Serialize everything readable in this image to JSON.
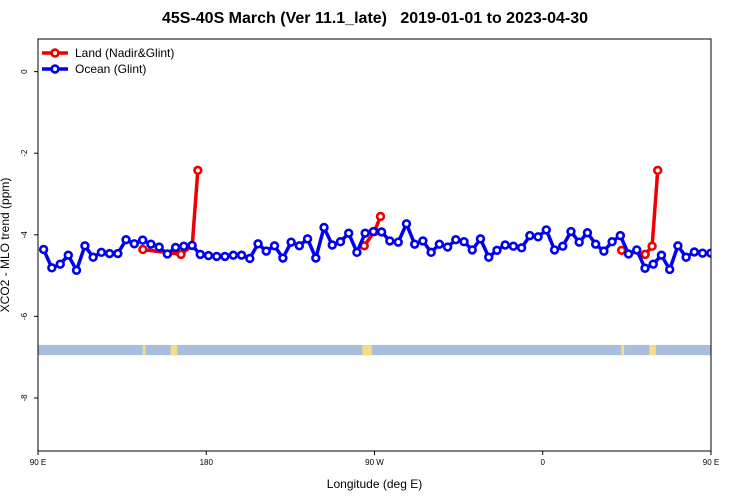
{
  "chart_data": {
    "type": "line",
    "title": "45S-40S March (Ver 11.1_late)   2019-01-01 to 2023-04-30",
    "xlabel": "Longitude (deg E)",
    "ylabel": "XCO2 - MLO trend (ppm)",
    "xlim": [
      90,
      450
    ],
    "ylim": [
      -9.3,
      0.8
    ],
    "x_ticks": [
      {
        "value": 90,
        "label": "90 E"
      },
      {
        "value": 180,
        "label": "180"
      },
      {
        "value": 270,
        "label": "90 W"
      },
      {
        "value": 360,
        "label": "0"
      },
      {
        "value": 450,
        "label": "90 E"
      },
      {
        "value": 540,
        "label": "180"
      }
    ],
    "y_ticks": [
      {
        "value": 0,
        "label": "0"
      },
      {
        "value": -2,
        "label": "-2"
      },
      {
        "value": -4,
        "label": "-4"
      },
      {
        "value": -6,
        "label": "-6"
      },
      {
        "value": -8,
        "label": "-8"
      }
    ],
    "grid": false,
    "legend_position": "top-left",
    "series": [
      {
        "name": "Land (Nadir&Glint)",
        "color": "#ee0000",
        "segments": [
          [
            [
              146.1,
              -4.36
            ],
            [
              166.5,
              -4.48
            ],
            [
              172.5,
              -4.26
            ],
            [
              175.5,
              -2.42
            ]
          ],
          [
            [
              264.5,
              -4.27
            ],
            [
              270.0,
              -3.92
            ],
            [
              273.2,
              -3.55
            ]
          ],
          [
            [
              402.2,
              -4.38
            ],
            [
              414.8,
              -4.48
            ],
            [
              418.5,
              -4.28
            ],
            [
              421.5,
              -2.42
            ]
          ]
        ]
      },
      {
        "name": "Ocean (Glint)",
        "color": "#0000ee",
        "points": [
          [
            93.0,
            -4.36
          ],
          [
            97.4,
            -4.81
          ],
          [
            101.9,
            -4.72
          ],
          [
            106.2,
            -4.5
          ],
          [
            110.6,
            -4.87
          ],
          [
            115.1,
            -4.27
          ],
          [
            119.5,
            -4.55
          ],
          [
            123.9,
            -4.43
          ],
          [
            128.3,
            -4.46
          ],
          [
            132.7,
            -4.46
          ],
          [
            137.1,
            -4.12
          ],
          [
            141.5,
            -4.22
          ],
          [
            146.0,
            -4.13
          ],
          [
            150.4,
            -4.23
          ],
          [
            154.8,
            -4.3
          ],
          [
            159.2,
            -4.47
          ],
          [
            163.6,
            -4.31
          ],
          [
            168.0,
            -4.28
          ],
          [
            172.4,
            -4.26
          ],
          [
            176.8,
            -4.48
          ],
          [
            181.2,
            -4.51
          ],
          [
            185.6,
            -4.53
          ],
          [
            190.0,
            -4.53
          ],
          [
            194.5,
            -4.5
          ],
          [
            198.9,
            -4.5
          ],
          [
            203.3,
            -4.58
          ],
          [
            207.7,
            -4.22
          ],
          [
            212.1,
            -4.4
          ],
          [
            216.5,
            -4.27
          ],
          [
            221.0,
            -4.57
          ],
          [
            225.4,
            -4.18
          ],
          [
            229.8,
            -4.27
          ],
          [
            234.2,
            -4.1
          ],
          [
            238.6,
            -4.57
          ],
          [
            243.0,
            -3.82
          ],
          [
            247.4,
            -4.25
          ],
          [
            251.8,
            -4.17
          ],
          [
            256.2,
            -3.96
          ],
          [
            260.6,
            -4.43
          ],
          [
            265.0,
            -3.96
          ],
          [
            269.4,
            -3.92
          ],
          [
            273.8,
            -3.93
          ],
          [
            278.2,
            -4.15
          ],
          [
            282.7,
            -4.18
          ],
          [
            287.1,
            -3.73
          ],
          [
            291.5,
            -4.23
          ],
          [
            295.9,
            -4.15
          ],
          [
            300.3,
            -4.43
          ],
          [
            304.7,
            -4.23
          ],
          [
            309.1,
            -4.3
          ],
          [
            313.5,
            -4.12
          ],
          [
            317.9,
            -4.17
          ],
          [
            322.3,
            -4.37
          ],
          [
            326.7,
            -4.1
          ],
          [
            331.1,
            -4.55
          ],
          [
            335.5,
            -4.38
          ],
          [
            339.9,
            -4.25
          ],
          [
            344.3,
            -4.28
          ],
          [
            348.7,
            -4.32
          ],
          [
            353.1,
            -4.02
          ],
          [
            357.5,
            -4.05
          ],
          [
            361.9,
            -3.88
          ],
          [
            366.3,
            -4.37
          ],
          [
            370.7,
            -4.28
          ],
          [
            375.1,
            -3.92
          ],
          [
            379.5,
            -4.18
          ],
          [
            383.9,
            -3.95
          ],
          [
            388.3,
            -4.23
          ],
          [
            392.7,
            -4.4
          ],
          [
            397.1,
            -4.17
          ],
          [
            401.5,
            -4.02
          ],
          [
            405.9,
            -4.47
          ],
          [
            410.3,
            -4.37
          ],
          [
            414.7,
            -4.82
          ],
          [
            419.1,
            -4.72
          ],
          [
            423.5,
            -4.5
          ],
          [
            427.9,
            -4.85
          ],
          [
            432.3,
            -4.27
          ],
          [
            436.7,
            -4.55
          ],
          [
            441.1,
            -4.42
          ],
          [
            445.5,
            -4.45
          ],
          [
            449.9,
            -4.45
          ],
          [
            454.3,
            -4.1
          ],
          [
            458.7,
            -4.22
          ],
          [
            463.1,
            -4.15
          ],
          [
            467.5,
            -4.22
          ],
          [
            471.9,
            -4.3
          ],
          [
            476.3,
            -4.47
          ],
          [
            480.7,
            -4.33
          ],
          [
            484.9,
            -4.28
          ]
        ]
      }
    ],
    "land_mask": {
      "band_y": [
        -6.95,
        -6.7
      ],
      "ocean_color": "#a8bedf",
      "land_color": "#f7dd82",
      "land_ranges": [
        [
          146.0,
          147.5
        ],
        [
          161.0,
          164.5
        ],
        [
          263.5,
          266.5
        ],
        [
          266.5,
          268.5
        ],
        [
          402.0,
          403.5
        ],
        [
          417.0,
          420.5
        ]
      ]
    }
  }
}
